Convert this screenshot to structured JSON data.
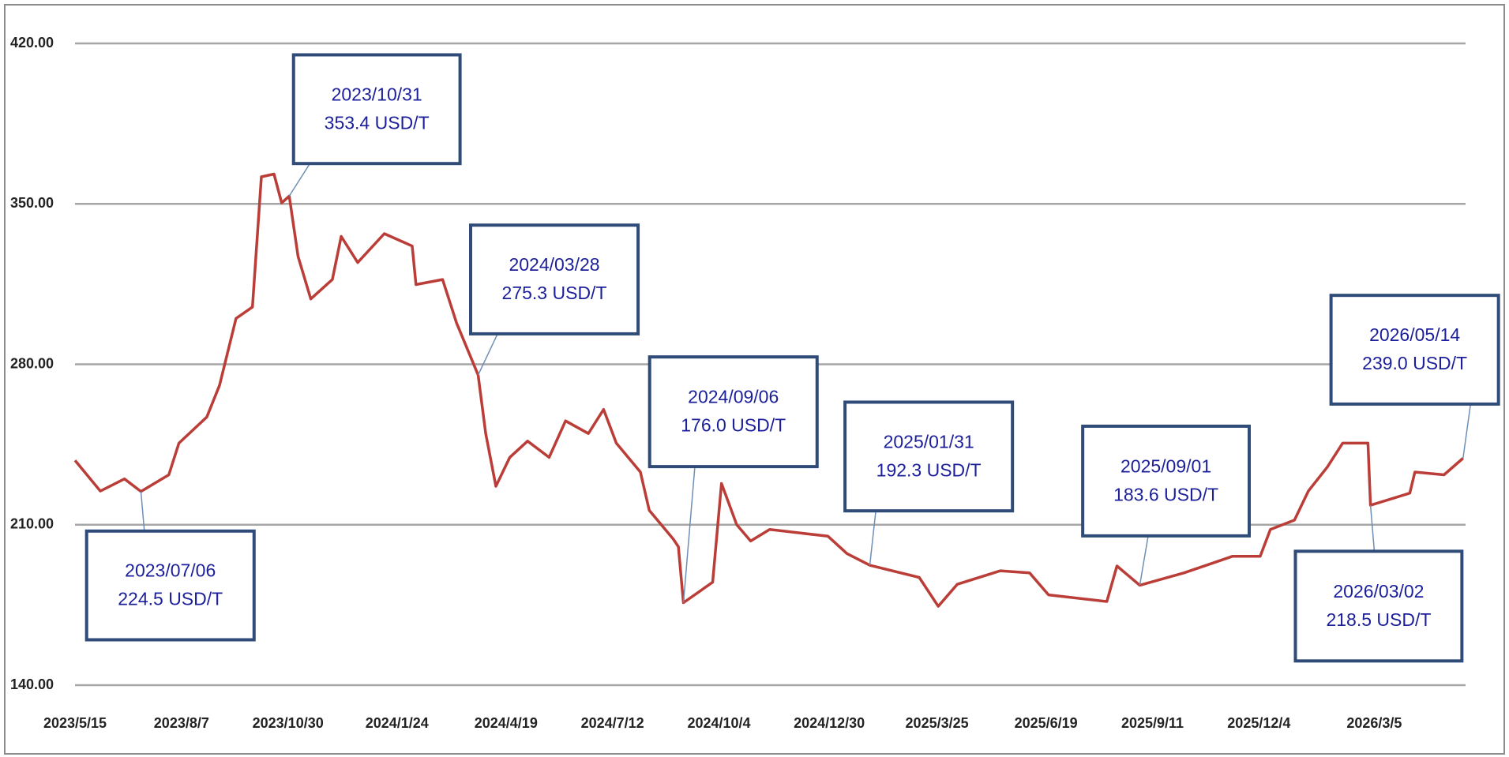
{
  "chart_data": {
    "type": "line",
    "x": [
      "2023/05/15",
      "2023/06/04",
      "2023/06/23",
      "2023/07/06",
      "2023/07/28",
      "2023/08/05",
      "2023/08/27",
      "2023/09/06",
      "2023/09/19",
      "2023/10/02",
      "2023/10/09",
      "2023/10/19",
      "2023/10/25",
      "2023/10/31",
      "2023/11/07",
      "2023/11/17",
      "2023/12/04",
      "2023/12/11",
      "2023/12/24",
      "2024/01/14",
      "2024/02/05",
      "2024/02/08",
      "2024/02/29",
      "2024/03/11",
      "2024/03/28",
      "2024/04/03",
      "2024/04/11",
      "2024/04/22",
      "2024/05/06",
      "2024/05/23",
      "2024/06/05",
      "2024/06/23",
      "2024/07/05",
      "2024/07/15",
      "2024/08/03",
      "2024/08/10",
      "2024/08/29",
      "2024/09/02",
      "2024/09/06",
      "2024/09/29",
      "2024/10/06",
      "2024/10/18",
      "2024/10/29",
      "2024/11/13",
      "2024/12/29",
      "2025/01/13",
      "2025/01/31",
      "2025/03/11",
      "2025/03/26",
      "2025/04/10",
      "2025/05/14",
      "2025/06/06",
      "2025/06/21",
      "2025/08/06",
      "2025/08/14",
      "2025/09/01",
      "2025/10/06",
      "2025/11/13",
      "2025/12/05",
      "2025/12/13",
      "2026/01/01",
      "2026/01/12",
      "2026/01/27",
      "2026/02/08",
      "2026/02/28",
      "2026/03/02",
      "2026/04/02",
      "2026/04/06",
      "2026/04/29",
      "2026/05/14"
    ],
    "series": [
      {
        "color": "#bb3d38",
        "values": [
          238.1,
          224.7,
          230,
          224.5,
          231.8,
          245.6,
          257,
          270.8,
          300,
          305,
          361.8,
          363,
          350.4,
          353.4,
          327,
          308.5,
          317,
          335.8,
          324.4,
          337,
          331.6,
          314.8,
          317,
          298,
          275.3,
          249.8,
          226.8,
          239.4,
          246.5,
          239.4,
          255.3,
          249.8,
          260.3,
          245.6,
          233,
          216.3,
          203.7,
          200.4,
          176.0,
          184.9,
          228,
          210,
          202.9,
          207.9,
          205,
          197.4,
          192.3,
          187,
          174.4,
          184,
          189.9,
          189,
          179.4,
          176.5,
          192,
          183.6,
          189,
          196.2,
          196.2,
          207.9,
          212,
          224.7,
          235.2,
          245.6,
          245.6,
          218.5,
          223.8,
          233,
          231.8,
          239.0
        ]
      }
    ],
    "xlim": [
      "2023/5/15",
      "2026/5/16"
    ],
    "xticks": [
      "2023/5/15",
      "2023/8/7",
      "2023/10/30",
      "2024/1/24",
      "2024/4/19",
      "2024/7/12",
      "2024/10/4",
      "2024/12/30",
      "2025/3/25",
      "2025/6/19",
      "2025/9/11",
      "2025/12/4",
      "2026/3/5"
    ],
    "ylim": [
      140,
      420
    ],
    "yticks": [
      {
        "value": 140,
        "label": "140.00"
      },
      {
        "value": 210,
        "label": "210.00"
      },
      {
        "value": 280,
        "label": "280.00"
      },
      {
        "value": 350,
        "label": "350.00"
      },
      {
        "value": 420,
        "label": "420.00"
      }
    ],
    "grid": true,
    "annotations": [
      {
        "x": "2023/07/06",
        "value": 224.5,
        "label": "224.5 USD/T"
      },
      {
        "x": "2023/10/31",
        "value": 353.4,
        "label": "353.4 USD/T"
      },
      {
        "x": "2024/03/28",
        "value": 275.3,
        "label": "275.3 USD/T"
      },
      {
        "x": "2024/09/06",
        "value": 176.0,
        "label": "176.0 USD/T"
      },
      {
        "x": "2025/01/31",
        "value": 192.3,
        "label": "192.3 USD/T"
      },
      {
        "x": "2025/09/01",
        "value": 183.6,
        "label": "183.6 USD/T"
      },
      {
        "x": "2026/03/02",
        "value": 218.5,
        "label": "218.5 USD/T"
      },
      {
        "x": "2026/05/14",
        "value": 239.0,
        "label": "239.0 USD/T"
      }
    ]
  }
}
